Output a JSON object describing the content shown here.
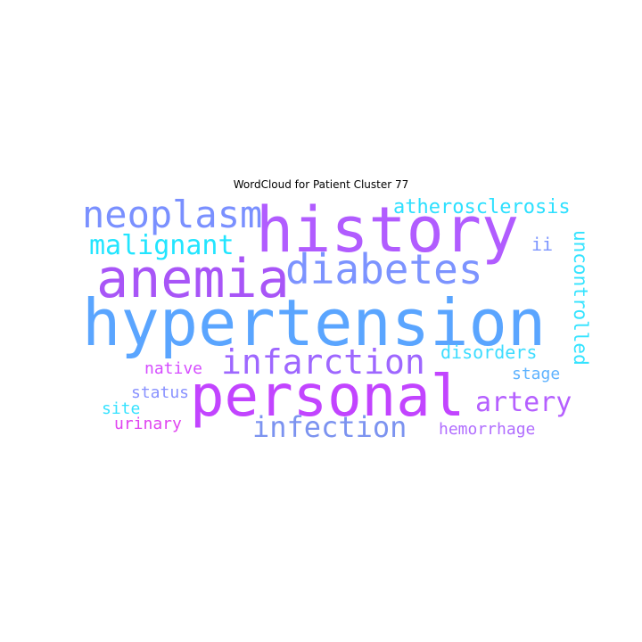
{
  "title": "WordCloud for Patient Cluster 77",
  "words": [
    {
      "text": "hypertension",
      "color": "#5AA5FF"
    },
    {
      "text": "history",
      "color": "#B15CFF"
    },
    {
      "text": "personal",
      "color": "#C244FF"
    },
    {
      "text": "anemia",
      "color": "#A855F7"
    },
    {
      "text": "diabetes",
      "color": "#7C93FF"
    },
    {
      "text": "neoplasm",
      "color": "#7A90FF"
    },
    {
      "text": "infarction",
      "color": "#9E67FF"
    },
    {
      "text": "infection",
      "color": "#7C93F0"
    },
    {
      "text": "malignant",
      "color": "#22E5FF"
    },
    {
      "text": "artery",
      "color": "#B560FF"
    },
    {
      "text": "atherosclerosis",
      "color": "#2EE0FF"
    },
    {
      "text": "uncontrolled",
      "color": "#33E3FF"
    },
    {
      "text": "disorders",
      "color": "#3DDCFF"
    },
    {
      "text": "native",
      "color": "#D54CFF"
    },
    {
      "text": "stage",
      "color": "#5FB3FF"
    },
    {
      "text": "status",
      "color": "#8891FF"
    },
    {
      "text": "hemorrhage",
      "color": "#B16EFF"
    },
    {
      "text": "site",
      "color": "#35E2FF"
    },
    {
      "text": "urinary",
      "color": "#E044F0"
    },
    {
      "text": "ii",
      "color": "#7D95FF"
    }
  ]
}
